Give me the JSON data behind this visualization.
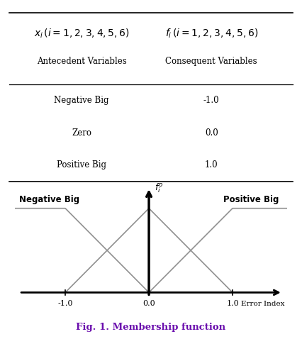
{
  "col1_header1": "$x_i\\,(i=1,2,3,4,5,6)$",
  "col2_header1": "$f_i\\,(i=1,2,3,4,5,6)$",
  "col1_header2": "Antecedent Variables",
  "col2_header2": "Consequent Variables",
  "rows": [
    [
      "Negative Big",
      "-1.0"
    ],
    [
      "Zero",
      "0.0"
    ],
    [
      "Positive Big",
      "1.0"
    ]
  ],
  "fig_ylabel": "$f_i^o$",
  "fig_xlabel": "Error Index",
  "fig_caption": "Fig. 1. Membership function",
  "label_neg": "Negative Big",
  "label_pos": "Positive Big",
  "line_color": "#909090",
  "axis_color": "#000000",
  "caption_color": "#6a0dad",
  "background_color": "#ffffff",
  "tick_labels": [
    "-1.0",
    "0.0",
    "1.0"
  ],
  "tick_values": [
    -1.0,
    0.0,
    1.0
  ]
}
